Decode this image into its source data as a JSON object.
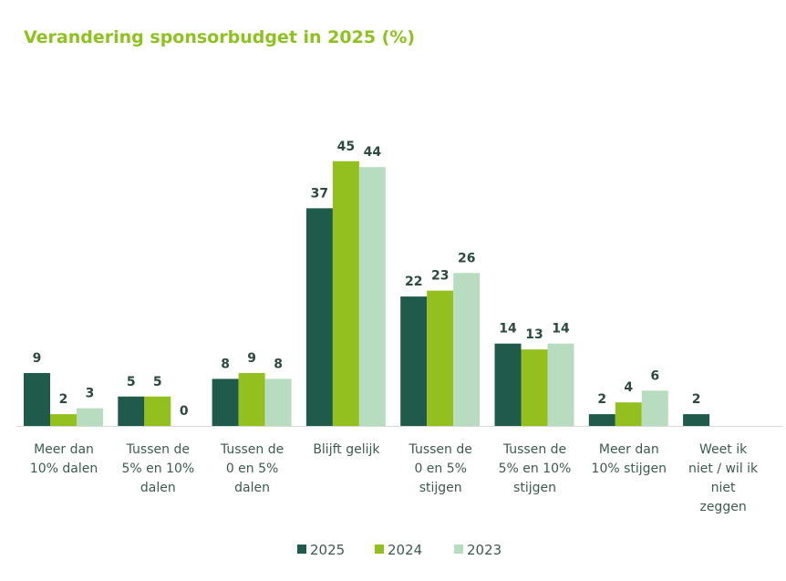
{
  "chart_data": {
    "type": "bar",
    "title": "Verandering sponsorbudget in 2025 (%)",
    "xlabel": "",
    "ylabel": "",
    "ylim": [
      0,
      45
    ],
    "grid": false,
    "legend_position": "bottom",
    "categories": [
      [
        "Meer dan",
        "10% dalen"
      ],
      [
        "Tussen de",
        "5% en 10%",
        "dalen"
      ],
      [
        "Tussen de",
        "0 en 5%",
        "dalen"
      ],
      [
        "Blijft gelijk"
      ],
      [
        "Tussen de",
        "0 en 5%",
        "stijgen"
      ],
      [
        "Tussen de",
        "5% en 10%",
        "stijgen"
      ],
      [
        "Meer dan",
        "10% stijgen"
      ],
      [
        "Weet ik",
        "niet / wil ik",
        "niet",
        "zeggen"
      ]
    ],
    "series": [
      {
        "name": "2025",
        "color": "#1f5a4b",
        "values": [
          9,
          5,
          8,
          37,
          22,
          14,
          2,
          2
        ]
      },
      {
        "name": "2024",
        "color": "#93c01f",
        "values": [
          2,
          5,
          9,
          45,
          23,
          13,
          4,
          null
        ]
      },
      {
        "name": "2023",
        "color": "#b8dcc0",
        "values": [
          3,
          0,
          8,
          44,
          26,
          14,
          6,
          null
        ]
      }
    ]
  }
}
